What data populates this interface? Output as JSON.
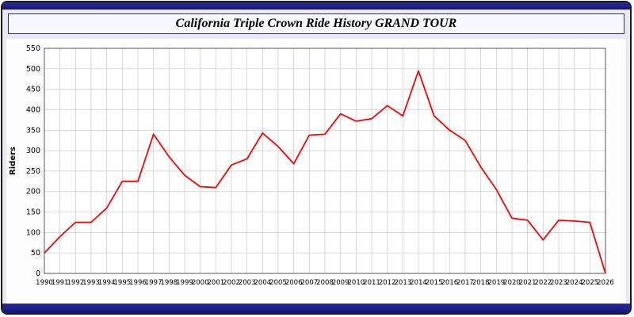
{
  "window": {
    "title": "California Triple Crown Ride History GRAND TOUR"
  },
  "chart_data": {
    "type": "line",
    "title": "California Triple Crown Ride History GRAND TOUR",
    "xlabel": "",
    "ylabel": "Riders",
    "ylim": [
      0,
      550
    ],
    "ytick_step": 50,
    "grid": true,
    "legend": "none",
    "line_color": "#ff0000",
    "grid_color": "#c9c9c9",
    "axis_color": "#555555",
    "x": [
      1990,
      1991,
      1992,
      1993,
      1994,
      1995,
      1996,
      1997,
      1998,
      1999,
      2000,
      2001,
      2002,
      2003,
      2004,
      2005,
      2006,
      2007,
      2008,
      2009,
      2010,
      2011,
      2012,
      2013,
      2014,
      2015,
      2016,
      2017,
      2018,
      2019,
      2020,
      2021,
      2022,
      2023,
      2024,
      2025,
      2026
    ],
    "values": [
      50,
      90,
      125,
      125,
      160,
      225,
      225,
      340,
      285,
      240,
      212,
      210,
      265,
      280,
      343,
      310,
      268,
      338,
      340,
      390,
      372,
      378,
      410,
      385,
      495,
      385,
      350,
      325,
      260,
      205,
      135,
      130,
      82,
      130,
      128,
      125,
      0
    ]
  }
}
